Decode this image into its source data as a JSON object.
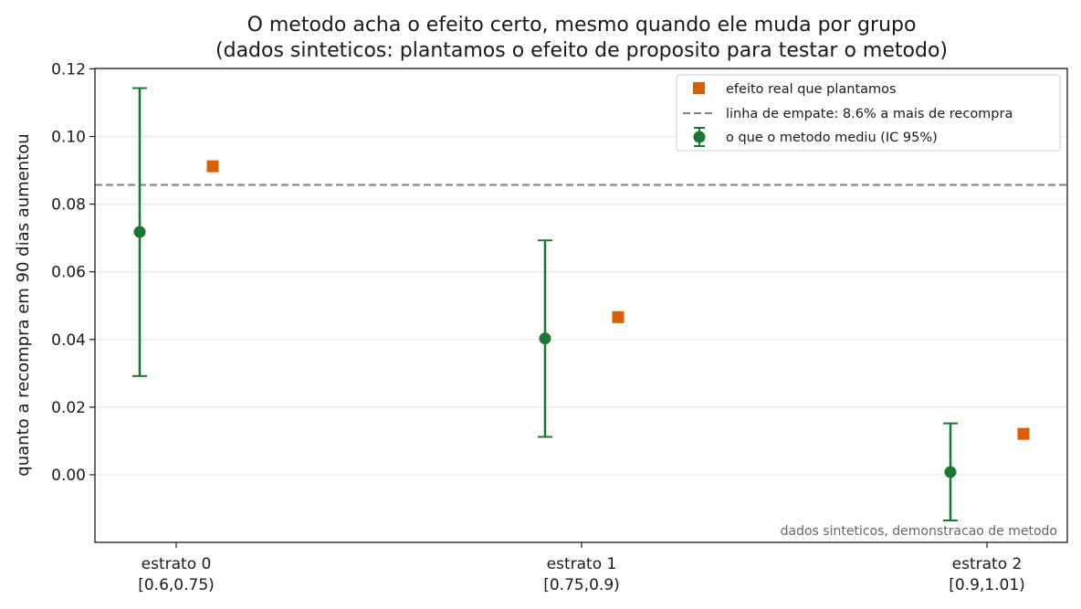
{
  "chart_data": {
    "type": "scatter",
    "title": "O metodo acha o efeito certo, mesmo quando ele muda por grupo",
    "subtitle": "(dados sinteticos: plantamos o efeito de proposito para testar o metodo)",
    "ylabel": "quanto a recompra em 90 dias aumentou",
    "xlabel": "",
    "ylim": [
      -0.02,
      0.12
    ],
    "yticks": [
      0.0,
      0.02,
      0.04,
      0.06,
      0.08,
      0.1,
      0.12
    ],
    "ytick_labels": [
      "0.00",
      "0.02",
      "0.04",
      "0.06",
      "0.08",
      "0.10",
      "0.12"
    ],
    "grid": "horizontal",
    "categories": [
      {
        "name": "estrato 0",
        "range": "[0.6,0.75)"
      },
      {
        "name": "estrato 1",
        "range": "[0.75,0.9)"
      },
      {
        "name": "estrato 2",
        "range": "[0.9,1.01)"
      }
    ],
    "series": [
      {
        "name": "o que o metodo mediu (IC 95%)",
        "kind": "errorbar",
        "color": "#1b7535",
        "values": [
          0.0718,
          0.0403,
          0.0008
        ],
        "ci_low": [
          0.0292,
          0.0112,
          -0.0135
        ],
        "ci_high": [
          0.1143,
          0.0693,
          0.0152
        ]
      },
      {
        "name": "efeito real que plantamos",
        "kind": "marker",
        "color": "#d95f02",
        "values": [
          0.0912,
          0.0466,
          0.0121
        ]
      }
    ],
    "reference_line": {
      "name": "linha de empate: 8.6% a mais de recompra",
      "value": 0.0857,
      "color": "#808080",
      "style": "dashed"
    },
    "legend": {
      "placement": "top-right",
      "entries": [
        "efeito real que plantamos",
        "linha de empate: 8.6% a mais de recompra",
        "o que o metodo mediu (IC 95%)"
      ]
    },
    "note": "dados sinteticos, demonstracao de metodo"
  }
}
